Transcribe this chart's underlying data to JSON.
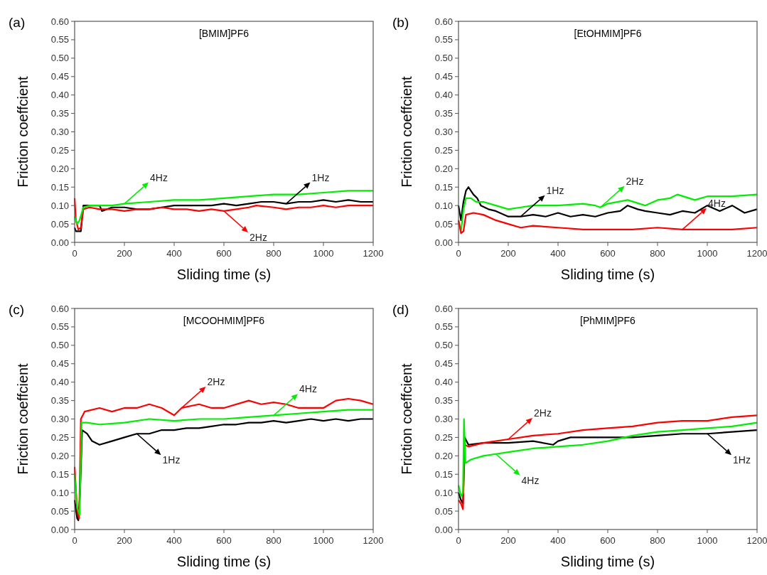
{
  "chart_data": [
    {
      "type": "line",
      "title": "[BMIM]PF6",
      "xlabel": "Sliding time (s)",
      "ylabel": "Friction coeffcient",
      "xlim": [
        0,
        1200
      ],
      "xticks": [
        0,
        200,
        400,
        600,
        800,
        1000,
        1200
      ],
      "ylim": [
        0,
        0.6
      ],
      "yticks": [
        {
          "value": 0,
          "label": "0.00"
        },
        {
          "value": 0.05,
          "label": "0.05"
        },
        {
          "value": 0.1,
          "label": "0.10"
        },
        {
          "value": 0.15,
          "label": "0.15"
        },
        {
          "value": 0.2,
          "label": "0.20"
        },
        {
          "value": 0.25,
          "label": "0.25"
        },
        {
          "value": 0.3,
          "label": "0.30"
        },
        {
          "value": 0.35,
          "label": "0.35"
        },
        {
          "value": 0.4,
          "label": "0.40"
        },
        {
          "value": 0.45,
          "label": "0.45"
        },
        {
          "value": 0.5,
          "label": "0.50"
        },
        {
          "value": 0.55,
          "label": "0.55"
        },
        {
          "value": 0.6,
          "label": "0.60"
        }
      ],
      "annotations": [
        "(a)",
        {
          "text": "1Hz",
          "x": 850,
          "y": 0.105
        },
        {
          "text": "2Hz",
          "x": 600,
          "y": 0.085
        },
        {
          "text": "4Hz",
          "x": 200,
          "y": 0.105
        }
      ],
      "series": [
        {
          "color": "#000000",
          "x": [
            0,
            5,
            15,
            25,
            35,
            60,
            100,
            110,
            150,
            200,
            250,
            300,
            350,
            400,
            450,
            500,
            550,
            600,
            650,
            700,
            750,
            800,
            850,
            900,
            950,
            1000,
            1050,
            1100,
            1150,
            1200
          ],
          "values": [
            0.04,
            0.03,
            0.03,
            0.03,
            0.1,
            0.1,
            0.1,
            0.085,
            0.095,
            0.095,
            0.09,
            0.09,
            0.095,
            0.1,
            0.1,
            0.1,
            0.1,
            0.105,
            0.1,
            0.105,
            0.11,
            0.11,
            0.105,
            0.11,
            0.11,
            0.115,
            0.11,
            0.115,
            0.11,
            0.11
          ]
        },
        {
          "color": "#ff0000",
          "x": [
            0,
            5,
            15,
            25,
            35,
            60,
            100,
            150,
            200,
            250,
            300,
            350,
            400,
            450,
            500,
            550,
            600,
            650,
            700,
            730,
            800,
            850,
            900,
            950,
            1000,
            1050,
            1100,
            1150,
            1200
          ],
          "values": [
            0.12,
            0.06,
            0.035,
            0.04,
            0.09,
            0.095,
            0.09,
            0.09,
            0.085,
            0.09,
            0.09,
            0.095,
            0.09,
            0.09,
            0.085,
            0.09,
            0.085,
            0.09,
            0.095,
            0.1,
            0.095,
            0.09,
            0.095,
            0.095,
            0.1,
            0.095,
            0.1,
            0.1,
            0.1
          ]
        },
        {
          "color": "#00ee00",
          "x": [
            0,
            10,
            20,
            35,
            60,
            100,
            150,
            200,
            300,
            400,
            500,
            600,
            700,
            800,
            900,
            1000,
            1100,
            1200
          ],
          "values": [
            0.07,
            0.05,
            0.06,
            0.095,
            0.1,
            0.1,
            0.1,
            0.105,
            0.11,
            0.115,
            0.115,
            0.12,
            0.125,
            0.13,
            0.13,
            0.135,
            0.14,
            0.14
          ]
        }
      ]
    },
    {
      "type": "line",
      "title": "[EtOHMIM]PF6",
      "xlabel": "Sliding time (s)",
      "ylabel": "Friction coeffcient",
      "xlim": [
        0,
        1200
      ],
      "xticks": [
        0,
        200,
        400,
        600,
        800,
        1000,
        1200
      ],
      "ylim": [
        0,
        0.6
      ],
      "yticks": [
        {
          "value": 0,
          "label": "0.00"
        },
        {
          "value": 0.05,
          "label": "0.05"
        },
        {
          "value": 0.1,
          "label": "0.10"
        },
        {
          "value": 0.15,
          "label": "0.15"
        },
        {
          "value": 0.2,
          "label": "0.20"
        },
        {
          "value": 0.25,
          "label": "0.25"
        },
        {
          "value": 0.3,
          "label": "0.30"
        },
        {
          "value": 0.35,
          "label": "0.35"
        },
        {
          "value": 0.4,
          "label": "0.40"
        },
        {
          "value": 0.45,
          "label": "0.45"
        },
        {
          "value": 0.5,
          "label": "0.50"
        },
        {
          "value": 0.55,
          "label": "0.55"
        },
        {
          "value": 0.6,
          "label": "0.60"
        }
      ],
      "annotations": [
        "(b)",
        {
          "text": "1Hz",
          "x": 250,
          "y": 0.07
        },
        {
          "text": "2Hz",
          "x": 570,
          "y": 0.095
        },
        {
          "text": "4Hz",
          "x": 900,
          "y": 0.035
        }
      ],
      "series": [
        {
          "color": "#000000",
          "x": [
            0,
            10,
            20,
            30,
            40,
            60,
            75,
            90,
            120,
            150,
            200,
            250,
            300,
            350,
            400,
            450,
            500,
            550,
            600,
            650,
            680,
            720,
            750,
            800,
            850,
            900,
            950,
            1000,
            1050,
            1100,
            1150,
            1200
          ],
          "values": [
            0.1,
            0.06,
            0.11,
            0.14,
            0.15,
            0.13,
            0.12,
            0.1,
            0.09,
            0.085,
            0.07,
            0.07,
            0.075,
            0.07,
            0.08,
            0.07,
            0.075,
            0.07,
            0.08,
            0.085,
            0.1,
            0.09,
            0.085,
            0.08,
            0.075,
            0.085,
            0.08,
            0.1,
            0.085,
            0.1,
            0.08,
            0.09
          ]
        },
        {
          "color": "#00ee00",
          "x": [
            0,
            10,
            20,
            30,
            50,
            70,
            100,
            150,
            200,
            250,
            300,
            400,
            500,
            550,
            570,
            600,
            680,
            750,
            800,
            850,
            880,
            950,
            1000,
            1100,
            1200
          ],
          "values": [
            0.06,
            0.03,
            0.09,
            0.12,
            0.12,
            0.11,
            0.11,
            0.1,
            0.09,
            0.095,
            0.1,
            0.1,
            0.105,
            0.1,
            0.095,
            0.105,
            0.115,
            0.1,
            0.115,
            0.12,
            0.13,
            0.115,
            0.125,
            0.125,
            0.13
          ]
        },
        {
          "color": "#ff0000",
          "x": [
            0,
            10,
            20,
            30,
            60,
            100,
            150,
            200,
            250,
            300,
            400,
            500,
            600,
            700,
            800,
            900,
            1000,
            1100,
            1200
          ],
          "values": [
            0.06,
            0.025,
            0.03,
            0.075,
            0.08,
            0.075,
            0.06,
            0.05,
            0.04,
            0.045,
            0.04,
            0.035,
            0.035,
            0.035,
            0.04,
            0.035,
            0.035,
            0.035,
            0.04
          ]
        }
      ]
    },
    {
      "type": "line",
      "title": "[MCOOHMIM]PF6",
      "xlabel": "Sliding time (s)",
      "ylabel": "Friction coeffcient",
      "xlim": [
        0,
        1200
      ],
      "xticks": [
        0,
        200,
        400,
        600,
        800,
        1000,
        1200
      ],
      "ylim": [
        0,
        0.6
      ],
      "yticks": [
        {
          "value": 0,
          "label": "0.00"
        },
        {
          "value": 0.05,
          "label": "0.05"
        },
        {
          "value": 0.1,
          "label": "0.10"
        },
        {
          "value": 0.15,
          "label": "0.15"
        },
        {
          "value": 0.2,
          "label": "0.20"
        },
        {
          "value": 0.25,
          "label": "0.25"
        },
        {
          "value": 0.3,
          "label": "0.30"
        },
        {
          "value": 0.35,
          "label": "0.35"
        },
        {
          "value": 0.4,
          "label": "0.40"
        },
        {
          "value": 0.45,
          "label": "0.45"
        },
        {
          "value": 0.5,
          "label": "0.50"
        },
        {
          "value": 0.55,
          "label": "0.55"
        },
        {
          "value": 0.6,
          "label": "0.60"
        }
      ],
      "annotations": [
        "(c)",
        {
          "text": "1Hz",
          "x": 250,
          "y": 0.26
        },
        {
          "text": "2Hz",
          "x": 430,
          "y": 0.33
        },
        {
          "text": "4Hz",
          "x": 800,
          "y": 0.31
        }
      ],
      "series": [
        {
          "color": "#000000",
          "x": [
            0,
            10,
            15,
            22,
            30,
            50,
            70,
            100,
            150,
            200,
            250,
            300,
            350,
            400,
            450,
            500,
            550,
            600,
            650,
            700,
            750,
            800,
            850,
            900,
            950,
            1000,
            1050,
            1100,
            1150,
            1200
          ],
          "values": [
            0.08,
            0.03,
            0.025,
            0.1,
            0.27,
            0.26,
            0.24,
            0.23,
            0.24,
            0.25,
            0.26,
            0.26,
            0.27,
            0.27,
            0.275,
            0.275,
            0.28,
            0.285,
            0.285,
            0.29,
            0.29,
            0.295,
            0.29,
            0.295,
            0.3,
            0.295,
            0.3,
            0.295,
            0.3,
            0.3
          ]
        },
        {
          "color": "#ff0000",
          "x": [
            0,
            10,
            18,
            25,
            40,
            100,
            150,
            200,
            250,
            300,
            350,
            400,
            430,
            500,
            550,
            600,
            700,
            750,
            800,
            850,
            900,
            950,
            1000,
            1050,
            1100,
            1150,
            1200
          ],
          "values": [
            0.17,
            0.05,
            0.03,
            0.3,
            0.32,
            0.33,
            0.32,
            0.33,
            0.33,
            0.34,
            0.33,
            0.31,
            0.33,
            0.34,
            0.33,
            0.33,
            0.35,
            0.34,
            0.345,
            0.34,
            0.33,
            0.33,
            0.33,
            0.35,
            0.355,
            0.35,
            0.34
          ]
        },
        {
          "color": "#00ee00",
          "x": [
            0,
            10,
            20,
            28,
            50,
            100,
            200,
            300,
            400,
            500,
            600,
            700,
            800,
            900,
            1000,
            1100,
            1200
          ],
          "values": [
            0.15,
            0.06,
            0.04,
            0.29,
            0.29,
            0.285,
            0.29,
            0.3,
            0.295,
            0.3,
            0.3,
            0.305,
            0.31,
            0.315,
            0.32,
            0.325,
            0.325
          ]
        }
      ]
    },
    {
      "type": "line",
      "title": "[PhMIM]PF6",
      "xlabel": "Sliding time (s)",
      "ylabel": "Friction coeffcient",
      "xlim": [
        0,
        1200
      ],
      "xticks": [
        0,
        200,
        400,
        600,
        800,
        1000,
        1200
      ],
      "ylim": [
        0,
        0.6
      ],
      "yticks": [
        {
          "value": 0,
          "label": "0.00"
        },
        {
          "value": 0.05,
          "label": "0.05"
        },
        {
          "value": 0.1,
          "label": "0.10"
        },
        {
          "value": 0.15,
          "label": "0.15"
        },
        {
          "value": 0.2,
          "label": "0.20"
        },
        {
          "value": 0.25,
          "label": "0.25"
        },
        {
          "value": 0.3,
          "label": "0.30"
        },
        {
          "value": 0.35,
          "label": "0.35"
        },
        {
          "value": 0.4,
          "label": "0.40"
        },
        {
          "value": 0.45,
          "label": "0.45"
        },
        {
          "value": 0.5,
          "label": "0.50"
        },
        {
          "value": 0.55,
          "label": "0.55"
        },
        {
          "value": 0.6,
          "label": "0.60"
        }
      ],
      "annotations": [
        "(d)",
        {
          "text": "1Hz",
          "x": 1000,
          "y": 0.26
        },
        {
          "text": "2Hz",
          "x": 200,
          "y": 0.245
        },
        {
          "text": "4Hz",
          "x": 150,
          "y": 0.205
        }
      ],
      "series": [
        {
          "color": "#000000",
          "x": [
            0,
            10,
            18,
            25,
            40,
            100,
            200,
            300,
            380,
            400,
            450,
            500,
            600,
            700,
            800,
            900,
            1000,
            1100,
            1200
          ],
          "values": [
            0.1,
            0.08,
            0.07,
            0.25,
            0.23,
            0.235,
            0.235,
            0.24,
            0.23,
            0.24,
            0.25,
            0.25,
            0.25,
            0.25,
            0.255,
            0.26,
            0.26,
            0.265,
            0.27
          ]
        },
        {
          "color": "#ff0000",
          "x": [
            0,
            10,
            18,
            25,
            40,
            100,
            200,
            300,
            400,
            500,
            600,
            700,
            800,
            900,
            1000,
            1100,
            1200
          ],
          "values": [
            0.08,
            0.07,
            0.055,
            0.23,
            0.225,
            0.235,
            0.245,
            0.255,
            0.26,
            0.27,
            0.275,
            0.28,
            0.29,
            0.295,
            0.295,
            0.305,
            0.31
          ]
        },
        {
          "color": "#00ee00",
          "x": [
            0,
            10,
            18,
            22,
            28,
            50,
            100,
            150,
            200,
            300,
            400,
            500,
            600,
            700,
            800,
            900,
            1000,
            1100,
            1200
          ],
          "values": [
            0.12,
            0.09,
            0.1,
            0.3,
            0.18,
            0.19,
            0.2,
            0.205,
            0.21,
            0.22,
            0.225,
            0.23,
            0.24,
            0.255,
            0.265,
            0.27,
            0.275,
            0.28,
            0.29
          ]
        }
      ]
    }
  ]
}
